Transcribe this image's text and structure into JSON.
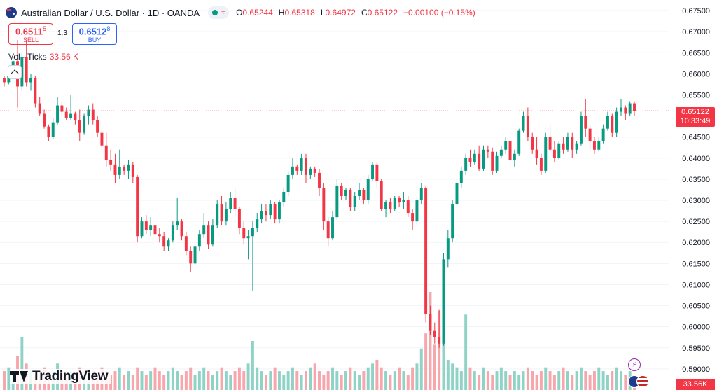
{
  "header": {
    "title": "Australian Dollar / U.S. Dollar · 1D · OANDA",
    "ohlc": {
      "o_label": "O",
      "o": "0.65244",
      "h_label": "H",
      "h": "0.65318",
      "l_label": "L",
      "l": "0.64972",
      "c_label": "C",
      "c": "0.65122",
      "change": "−0.00100 (−0.15%)"
    }
  },
  "trade": {
    "sell_price": "0.6511",
    "sell_sup": "5",
    "sell_label": "SELL",
    "spread": "1.3",
    "buy_price": "0.6512",
    "buy_sup": "8",
    "buy_label": "BUY"
  },
  "volume": {
    "label": "Vol · Ticks",
    "value": "33.56 K"
  },
  "price_tag": {
    "price": "0.65122",
    "countdown": "10:33:49"
  },
  "volume_tag": "33.56K",
  "logo_text": "TradingView",
  "colors": {
    "up": "#089981",
    "down": "#f23645",
    "up_vol": "#8fd3c6",
    "down_vol": "#f7a6ac",
    "grid": "#f0f3fa"
  },
  "chart_data": {
    "type": "candlestick",
    "y_axis": {
      "min": 0.585,
      "max": 0.6775,
      "ticks": [
        "0.67500",
        "0.67000",
        "0.66500",
        "0.66000",
        "0.65500",
        "0.65000",
        "0.64500",
        "0.64000",
        "0.63500",
        "0.63000",
        "0.62500",
        "0.62000",
        "0.61500",
        "0.61000",
        "0.60500",
        "0.60000",
        "0.59500",
        "0.59000"
      ]
    },
    "last_price": 0.65122,
    "candles": [
      [
        0.659,
        0.6595,
        0.657,
        0.658
      ],
      [
        0.658,
        0.66,
        0.6575,
        0.6595
      ],
      [
        0.6595,
        0.664,
        0.659,
        0.663
      ],
      [
        0.663,
        0.668,
        0.652,
        0.657
      ],
      [
        0.657,
        0.665,
        0.656,
        0.664
      ],
      [
        0.664,
        0.668,
        0.657,
        0.658
      ],
      [
        0.658,
        0.66,
        0.656,
        0.659
      ],
      [
        0.659,
        0.6595,
        0.652,
        0.653
      ],
      [
        0.653,
        0.6545,
        0.65,
        0.6505
      ],
      [
        0.6505,
        0.6515,
        0.647,
        0.6475
      ],
      [
        0.6475,
        0.648,
        0.644,
        0.645
      ],
      [
        0.645,
        0.6495,
        0.6445,
        0.6485
      ],
      [
        0.6485,
        0.6545,
        0.648,
        0.6525
      ],
      [
        0.6525,
        0.6535,
        0.65,
        0.651
      ],
      [
        0.651,
        0.652,
        0.649,
        0.6495
      ],
      [
        0.6495,
        0.655,
        0.649,
        0.6505
      ],
      [
        0.6505,
        0.651,
        0.648,
        0.649
      ],
      [
        0.649,
        0.6515,
        0.644,
        0.646
      ],
      [
        0.646,
        0.6505,
        0.6455,
        0.65
      ],
      [
        0.65,
        0.6525,
        0.648,
        0.6515
      ],
      [
        0.6515,
        0.653,
        0.648,
        0.649
      ],
      [
        0.649,
        0.65,
        0.645,
        0.646
      ],
      [
        0.646,
        0.647,
        0.642,
        0.643
      ],
      [
        0.643,
        0.646,
        0.638,
        0.6395
      ],
      [
        0.6395,
        0.642,
        0.637,
        0.6385
      ],
      [
        0.6385,
        0.641,
        0.634,
        0.636
      ],
      [
        0.636,
        0.642,
        0.635,
        0.638
      ],
      [
        0.638,
        0.6385,
        0.636,
        0.637
      ],
      [
        0.637,
        0.6395,
        0.635,
        0.6385
      ],
      [
        0.6385,
        0.639,
        0.634,
        0.6355
      ],
      [
        0.6355,
        0.636,
        0.62,
        0.6215
      ],
      [
        0.6215,
        0.626,
        0.621,
        0.625
      ],
      [
        0.625,
        0.6265,
        0.622,
        0.623
      ],
      [
        0.623,
        0.626,
        0.6215,
        0.624
      ],
      [
        0.624,
        0.625,
        0.621,
        0.622
      ],
      [
        0.622,
        0.6235,
        0.62,
        0.6215
      ],
      [
        0.6215,
        0.6225,
        0.618,
        0.619
      ],
      [
        0.619,
        0.621,
        0.618,
        0.6205
      ],
      [
        0.6205,
        0.625,
        0.62,
        0.624
      ],
      [
        0.624,
        0.6305,
        0.623,
        0.625
      ],
      [
        0.625,
        0.6255,
        0.6205,
        0.6215
      ],
      [
        0.6215,
        0.6225,
        0.617,
        0.618
      ],
      [
        0.618,
        0.619,
        0.613,
        0.615
      ],
      [
        0.615,
        0.62,
        0.614,
        0.619
      ],
      [
        0.619,
        0.623,
        0.618,
        0.622
      ],
      [
        0.622,
        0.627,
        0.621,
        0.624
      ],
      [
        0.624,
        0.625,
        0.6185,
        0.6195
      ],
      [
        0.6195,
        0.6255,
        0.619,
        0.624
      ],
      [
        0.624,
        0.63,
        0.6235,
        0.629
      ],
      [
        0.629,
        0.631,
        0.624,
        0.625
      ],
      [
        0.625,
        0.6295,
        0.624,
        0.628
      ],
      [
        0.628,
        0.632,
        0.627,
        0.6305
      ],
      [
        0.6305,
        0.633,
        0.626,
        0.628
      ],
      [
        0.628,
        0.6285,
        0.622,
        0.6235
      ],
      [
        0.6235,
        0.625,
        0.6195,
        0.621
      ],
      [
        0.621,
        0.623,
        0.616,
        0.6215
      ],
      [
        0.6215,
        0.625,
        0.6085,
        0.6235
      ],
      [
        0.6235,
        0.627,
        0.6225,
        0.6255
      ],
      [
        0.6255,
        0.629,
        0.6245,
        0.6275
      ],
      [
        0.6275,
        0.629,
        0.625,
        0.6265
      ],
      [
        0.6265,
        0.63,
        0.6255,
        0.629
      ],
      [
        0.629,
        0.6295,
        0.6245,
        0.6255
      ],
      [
        0.6255,
        0.63,
        0.6245,
        0.6295
      ],
      [
        0.6295,
        0.633,
        0.6285,
        0.632
      ],
      [
        0.632,
        0.637,
        0.631,
        0.636
      ],
      [
        0.636,
        0.64,
        0.635,
        0.638
      ],
      [
        0.638,
        0.6385,
        0.636,
        0.637
      ],
      [
        0.637,
        0.641,
        0.636,
        0.64
      ],
      [
        0.64,
        0.641,
        0.634,
        0.636
      ],
      [
        0.636,
        0.638,
        0.635,
        0.6375
      ],
      [
        0.6375,
        0.638,
        0.6355,
        0.6365
      ],
      [
        0.6365,
        0.6375,
        0.631,
        0.633
      ],
      [
        0.633,
        0.634,
        0.623,
        0.625
      ],
      [
        0.625,
        0.626,
        0.619,
        0.621
      ],
      [
        0.621,
        0.6275,
        0.6205,
        0.626
      ],
      [
        0.626,
        0.635,
        0.6255,
        0.6335
      ],
      [
        0.6335,
        0.634,
        0.63,
        0.631
      ],
      [
        0.631,
        0.633,
        0.63,
        0.6325
      ],
      [
        0.6325,
        0.633,
        0.6275,
        0.6285
      ],
      [
        0.6285,
        0.632,
        0.6275,
        0.631
      ],
      [
        0.631,
        0.634,
        0.63,
        0.6325
      ],
      [
        0.6325,
        0.633,
        0.629,
        0.63
      ],
      [
        0.63,
        0.636,
        0.629,
        0.635
      ],
      [
        0.635,
        0.639,
        0.6345,
        0.6385
      ],
      [
        0.6385,
        0.639,
        0.633,
        0.6345
      ],
      [
        0.6345,
        0.635,
        0.6275,
        0.628
      ],
      [
        0.628,
        0.63,
        0.626,
        0.6295
      ],
      [
        0.6295,
        0.6305,
        0.627,
        0.628
      ],
      [
        0.628,
        0.631,
        0.6275,
        0.6305
      ],
      [
        0.6305,
        0.631,
        0.6285,
        0.6295
      ],
      [
        0.6295,
        0.632,
        0.628,
        0.63
      ],
      [
        0.63,
        0.631,
        0.626,
        0.627
      ],
      [
        0.627,
        0.628,
        0.623,
        0.625
      ],
      [
        0.625,
        0.631,
        0.624,
        0.63
      ],
      [
        0.63,
        0.634,
        0.629,
        0.633
      ],
      [
        0.633,
        0.6335,
        0.601,
        0.603
      ],
      [
        0.603,
        0.605,
        0.598,
        0.599
      ],
      [
        0.599,
        0.601,
        0.596,
        0.5975
      ],
      [
        0.5975,
        0.604,
        0.595,
        0.596
      ],
      [
        0.596,
        0.6175,
        0.5955,
        0.616
      ],
      [
        0.616,
        0.623,
        0.614,
        0.621
      ],
      [
        0.621,
        0.63,
        0.62,
        0.629
      ],
      [
        0.629,
        0.635,
        0.628,
        0.634
      ],
      [
        0.634,
        0.638,
        0.633,
        0.637
      ],
      [
        0.637,
        0.641,
        0.636,
        0.64
      ],
      [
        0.64,
        0.642,
        0.638,
        0.639
      ],
      [
        0.639,
        0.642,
        0.6385,
        0.641
      ],
      [
        0.641,
        0.643,
        0.637,
        0.6375
      ],
      [
        0.6375,
        0.643,
        0.637,
        0.642
      ],
      [
        0.642,
        0.643,
        0.64,
        0.6415
      ],
      [
        0.6415,
        0.6425,
        0.636,
        0.637
      ],
      [
        0.637,
        0.6415,
        0.6365,
        0.6405
      ],
      [
        0.6405,
        0.643,
        0.64,
        0.642
      ],
      [
        0.642,
        0.645,
        0.641,
        0.644
      ],
      [
        0.644,
        0.6445,
        0.638,
        0.6395
      ],
      [
        0.6395,
        0.642,
        0.638,
        0.641
      ],
      [
        0.641,
        0.647,
        0.6405,
        0.6465
      ],
      [
        0.6465,
        0.651,
        0.646,
        0.65
      ],
      [
        0.65,
        0.652,
        0.644,
        0.645
      ],
      [
        0.645,
        0.646,
        0.641,
        0.642
      ],
      [
        0.642,
        0.645,
        0.6385,
        0.64
      ],
      [
        0.64,
        0.641,
        0.636,
        0.637
      ],
      [
        0.637,
        0.646,
        0.6365,
        0.645
      ],
      [
        0.645,
        0.648,
        0.641,
        0.642
      ],
      [
        0.642,
        0.644,
        0.639,
        0.64
      ],
      [
        0.64,
        0.644,
        0.6395,
        0.6435
      ],
      [
        0.6435,
        0.645,
        0.641,
        0.642
      ],
      [
        0.642,
        0.646,
        0.6415,
        0.645
      ],
      [
        0.645,
        0.646,
        0.64,
        0.642
      ],
      [
        0.642,
        0.644,
        0.641,
        0.6435
      ],
      [
        0.6435,
        0.651,
        0.643,
        0.65
      ],
      [
        0.65,
        0.654,
        0.645,
        0.647
      ],
      [
        0.647,
        0.648,
        0.642,
        0.644
      ],
      [
        0.644,
        0.645,
        0.641,
        0.642
      ],
      [
        0.642,
        0.645,
        0.6415,
        0.644
      ],
      [
        0.644,
        0.648,
        0.6435,
        0.647
      ],
      [
        0.647,
        0.651,
        0.6465,
        0.65
      ],
      [
        0.65,
        0.6505,
        0.645,
        0.646
      ],
      [
        0.646,
        0.652,
        0.645,
        0.651
      ],
      [
        0.651,
        0.654,
        0.65,
        0.652
      ],
      [
        0.652,
        0.6525,
        0.649,
        0.6505
      ],
      [
        0.6505,
        0.6535,
        0.65,
        0.653
      ],
      [
        0.653,
        0.6535,
        0.65,
        0.6512
      ]
    ],
    "volumes": [
      5,
      6,
      4,
      9,
      14,
      7,
      5,
      4,
      5,
      6,
      4,
      5,
      7,
      5,
      4,
      5,
      4,
      6,
      5,
      4,
      5,
      4,
      6,
      5,
      4,
      5,
      6,
      4,
      5,
      4,
      6,
      5,
      4,
      5,
      6,
      5,
      4,
      5,
      6,
      5,
      4,
      5,
      6,
      4,
      5,
      6,
      5,
      4,
      5,
      6,
      5,
      4,
      5,
      6,
      5,
      7,
      13,
      6,
      5,
      4,
      5,
      6,
      5,
      4,
      5,
      6,
      5,
      4,
      5,
      6,
      7,
      5,
      4,
      5,
      6,
      5,
      4,
      5,
      6,
      5,
      4,
      5,
      6,
      7,
      8,
      6,
      5,
      4,
      5,
      6,
      5,
      4,
      6,
      7,
      11,
      15,
      26,
      12,
      21,
      16,
      8,
      7,
      6,
      5,
      20,
      6,
      5,
      4,
      6,
      5,
      4,
      5,
      6,
      5,
      4,
      5,
      4,
      5,
      6,
      5,
      4,
      5,
      6,
      5,
      4,
      5,
      6,
      5,
      4,
      5,
      6,
      5,
      4,
      5,
      6,
      5,
      4,
      5,
      6,
      5,
      4,
      5,
      4
    ]
  }
}
